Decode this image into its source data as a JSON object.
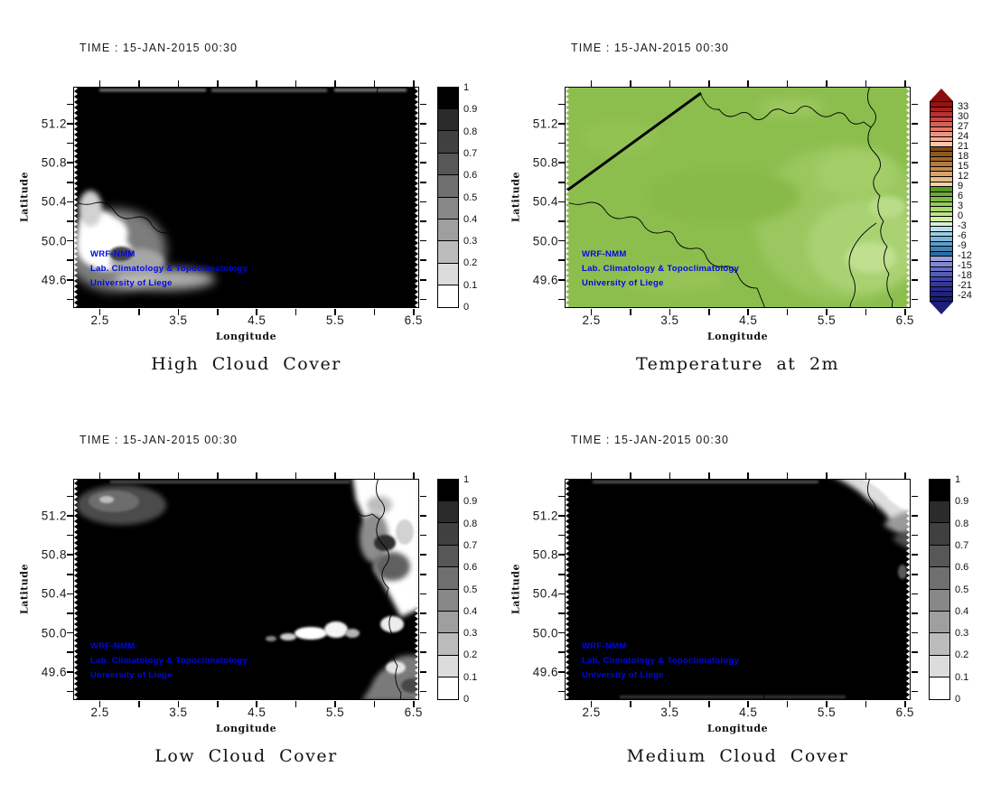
{
  "colors": {
    "background": "#ffffff",
    "watermark_blue": "#0008e8",
    "cloud_black": "#000000",
    "temperature_green": "#8cbe4e",
    "temperature_green_light": "#aad273",
    "frame": "#000000"
  },
  "panels": [
    {
      "name": "high-cloud-cover",
      "time_label": "TIME : 15-JAN-2015 00:30",
      "title": "High Cloud Cover",
      "xlabel": "Longitude",
      "ylabel": "Latitude",
      "watermark": [
        "WRF-NMM",
        "Lab. Climatology & Topoclimatology",
        "University of Liege"
      ],
      "colorbar": "cloud"
    },
    {
      "name": "temperature-2m",
      "time_label": "TIME : 15-JAN-2015 00:30",
      "title": "Temperature at 2m",
      "xlabel": "Longitude",
      "ylabel": "Latitude",
      "watermark": [
        "WRF-NMM",
        "Lab. Climatology & Topoclimatology",
        "University of Liege"
      ],
      "colorbar": "temperature"
    },
    {
      "name": "low-cloud-cover",
      "time_label": "TIME : 15-JAN-2015 00:30",
      "title": "Low Cloud Cover",
      "xlabel": "Longitude",
      "ylabel": "Latitude",
      "watermark": [
        "WRF-NMM",
        "Lab. Climatology & Topoclimatology",
        "University of Liege"
      ],
      "colorbar": "cloud"
    },
    {
      "name": "medium-cloud-cover",
      "time_label": "TIME : 15-JAN-2015 00:30",
      "title": "Medium Cloud Cover",
      "xlabel": "Longitude",
      "ylabel": "Latitude",
      "watermark": [
        "WRF-NMM",
        "Lab. Climatology & Topoclimatology",
        "University of Liege"
      ],
      "colorbar": "cloud"
    }
  ],
  "colorbars": {
    "cloud": {
      "style": "gray",
      "labels": [
        "1",
        "0.9",
        "0.8",
        "0.7",
        "0.6",
        "0.5",
        "0.4",
        "0.3",
        "0.2",
        "0.1",
        "0"
      ],
      "colors_top_to_bottom": [
        "#000000",
        "#2b2b2b",
        "#404040",
        "#575757",
        "#6f6f6f",
        "#878787",
        "#9f9f9f",
        "#bcbcbc",
        "#dcdcdc",
        "#ffffff"
      ]
    },
    "temperature": {
      "style": "temp",
      "labels": [
        "33",
        "30",
        "27",
        "24",
        "21",
        "18",
        "15",
        "12",
        "9",
        "6",
        "3",
        "0",
        "-3",
        "-6",
        "-9",
        "-12",
        "-15",
        "-18",
        "-21",
        "-24"
      ],
      "colors_top_to_bottom": [
        "#991111",
        "#a81e1e",
        "#ba3030",
        "#c94743",
        "#d75f53",
        "#e37867",
        "#ec937e",
        "#f3ad96",
        "#f8c4ac",
        "#7c4a12",
        "#8f581e",
        "#a2672b",
        "#b5793b",
        "#c78d50",
        "#d8a368",
        "#e8bb84",
        "#f3d3a4",
        "#5a9926",
        "#6cab34",
        "#7fba44",
        "#93ca58",
        "#a8d86e",
        "#bce488",
        "#d2eea4",
        "#d8eed6",
        "#badfe8",
        "#9ccce0",
        "#7cb6d6",
        "#5c9ec8",
        "#4084b6",
        "#2a6ea4",
        "#9aa0da",
        "#8288d0",
        "#6a70c4",
        "#555cb8",
        "#4348aa",
        "#34389c",
        "#282c8e",
        "#1f2280",
        "#181a74"
      ],
      "top_cap": "#8a0e0e",
      "bottom_cap": "#1e1e78"
    }
  },
  "chart_data": [
    {
      "type": "heatmap",
      "title": "High Cloud Cover",
      "time": "15-JAN-2015 00:30",
      "xlabel": "Longitude",
      "ylabel": "Latitude",
      "xlim": [
        2.17,
        6.56
      ],
      "ylim": [
        49.32,
        51.57
      ],
      "x_ticks": [
        2.5,
        3,
        3.5,
        4,
        4.5,
        5,
        5.5,
        6,
        6.5
      ],
      "x_tick_labels": [
        2.5,
        3.5,
        4.5,
        5.5,
        6.5
      ],
      "y_ticks": [
        49.4,
        49.6,
        49.8,
        50,
        50.2,
        50.4,
        50.6,
        50.8,
        51,
        51.2,
        51.4
      ],
      "y_tick_labels": [
        49.6,
        50,
        50.4,
        50.8,
        51.2
      ],
      "value_range": [
        0,
        1
      ],
      "colorbar_ticks": [
        0,
        0.1,
        0.2,
        0.3,
        0.4,
        0.5,
        0.6,
        0.7,
        0.8,
        0.9,
        1
      ],
      "grid": false,
      "legend": "colorbar-right",
      "field_summary": "High cloud fraction ~1.0 (black) over almost the whole Belgian domain; clear patch (0-0.4, white/grey blob) near 2.3-3.1E / 49.7-50.2N; thin grey band (~0.6-0.8) along the very top edge."
    },
    {
      "type": "heatmap",
      "title": "Temperature at 2m",
      "time": "15-JAN-2015 00:30",
      "xlabel": "Longitude",
      "ylabel": "Latitude",
      "xlim": [
        2.17,
        6.56
      ],
      "ylim": [
        49.32,
        51.57
      ],
      "x_ticks": [
        2.5,
        3,
        3.5,
        4,
        4.5,
        5,
        5.5,
        6,
        6.5
      ],
      "x_tick_labels": [
        2.5,
        3.5,
        4.5,
        5.5,
        6.5
      ],
      "y_ticks": [
        49.4,
        49.6,
        49.8,
        50,
        50.2,
        50.4,
        50.6,
        50.8,
        51,
        51.2,
        51.4
      ],
      "y_tick_labels": [
        49.6,
        50,
        50.4,
        50.8,
        51.2
      ],
      "value_range": [
        -25.5,
        34.5
      ],
      "colorbar_ticks": [
        33,
        30,
        27,
        24,
        21,
        18,
        15,
        12,
        9,
        6,
        3,
        0,
        -3,
        -6,
        -9,
        -12,
        -15,
        -18,
        -21,
        -24
      ],
      "grid": false,
      "legend": "colorbar-right",
      "field_summary": "2 m temperature mostly 3-6 C (mid green) over Belgium; slightly cooler 0-3 C (lighter green) over the Ardennes in the south-east; Belgian/Dutch/Luxembourg borders and coastline overlaid in black."
    },
    {
      "type": "heatmap",
      "title": "Low Cloud Cover",
      "time": "15-JAN-2015 00:30",
      "xlabel": "Longitude",
      "ylabel": "Latitude",
      "xlim": [
        2.17,
        6.56
      ],
      "ylim": [
        49.32,
        51.57
      ],
      "x_ticks": [
        2.5,
        3,
        3.5,
        4,
        4.5,
        5,
        5.5,
        6,
        6.5
      ],
      "x_tick_labels": [
        2.5,
        3.5,
        4.5,
        5.5,
        6.5
      ],
      "y_ticks": [
        49.4,
        49.6,
        49.8,
        50,
        50.2,
        50.4,
        50.6,
        50.8,
        51,
        51.2,
        51.4
      ],
      "y_tick_labels": [
        49.6,
        50,
        50.4,
        50.8,
        51.2
      ],
      "value_range": [
        0,
        1
      ],
      "colorbar_ticks": [
        0,
        0.1,
        0.2,
        0.3,
        0.4,
        0.5,
        0.6,
        0.7,
        0.8,
        0.9,
        1
      ],
      "grid": false,
      "legend": "colorbar-right",
      "field_summary": "Low cloud fraction ~1.0 (black) over most of the domain; broken clearer area (0-0.6, white/grey texture) along the eastern edge 5.9-6.6E; grey patch (~0.7-0.8) near 2.3-3.0E / 51.2-51.4N; small bright gaps near 4.8-5.3E / 50.0N."
    },
    {
      "type": "heatmap",
      "title": "Medium Cloud Cover",
      "time": "15-JAN-2015 00:30",
      "xlabel": "Longitude",
      "ylabel": "Latitude",
      "xlim": [
        2.17,
        6.56
      ],
      "ylim": [
        49.32,
        51.57
      ],
      "x_ticks": [
        2.5,
        3,
        3.5,
        4,
        4.5,
        5,
        5.5,
        6,
        6.5
      ],
      "x_tick_labels": [
        2.5,
        3.5,
        4.5,
        5.5,
        6.5
      ],
      "y_ticks": [
        49.4,
        49.6,
        49.8,
        50,
        50.2,
        50.4,
        50.6,
        50.8,
        51,
        51.2,
        51.4
      ],
      "y_tick_labels": [
        49.6,
        50,
        50.4,
        50.8,
        51.2
      ],
      "value_range": [
        0,
        1
      ],
      "colorbar_ticks": [
        0,
        0.1,
        0.2,
        0.3,
        0.4,
        0.5,
        0.6,
        0.7,
        0.8,
        0.9,
        1
      ],
      "grid": false,
      "legend": "colorbar-right",
      "field_summary": "Medium cloud fraction ~1.0 (black) everywhere except a clear wedge (0-0.5, white to grey gradient) in the north-east corner around 5.6-6.6E / 51.0-51.5N; thin grey strip along the bottom edge."
    }
  ]
}
